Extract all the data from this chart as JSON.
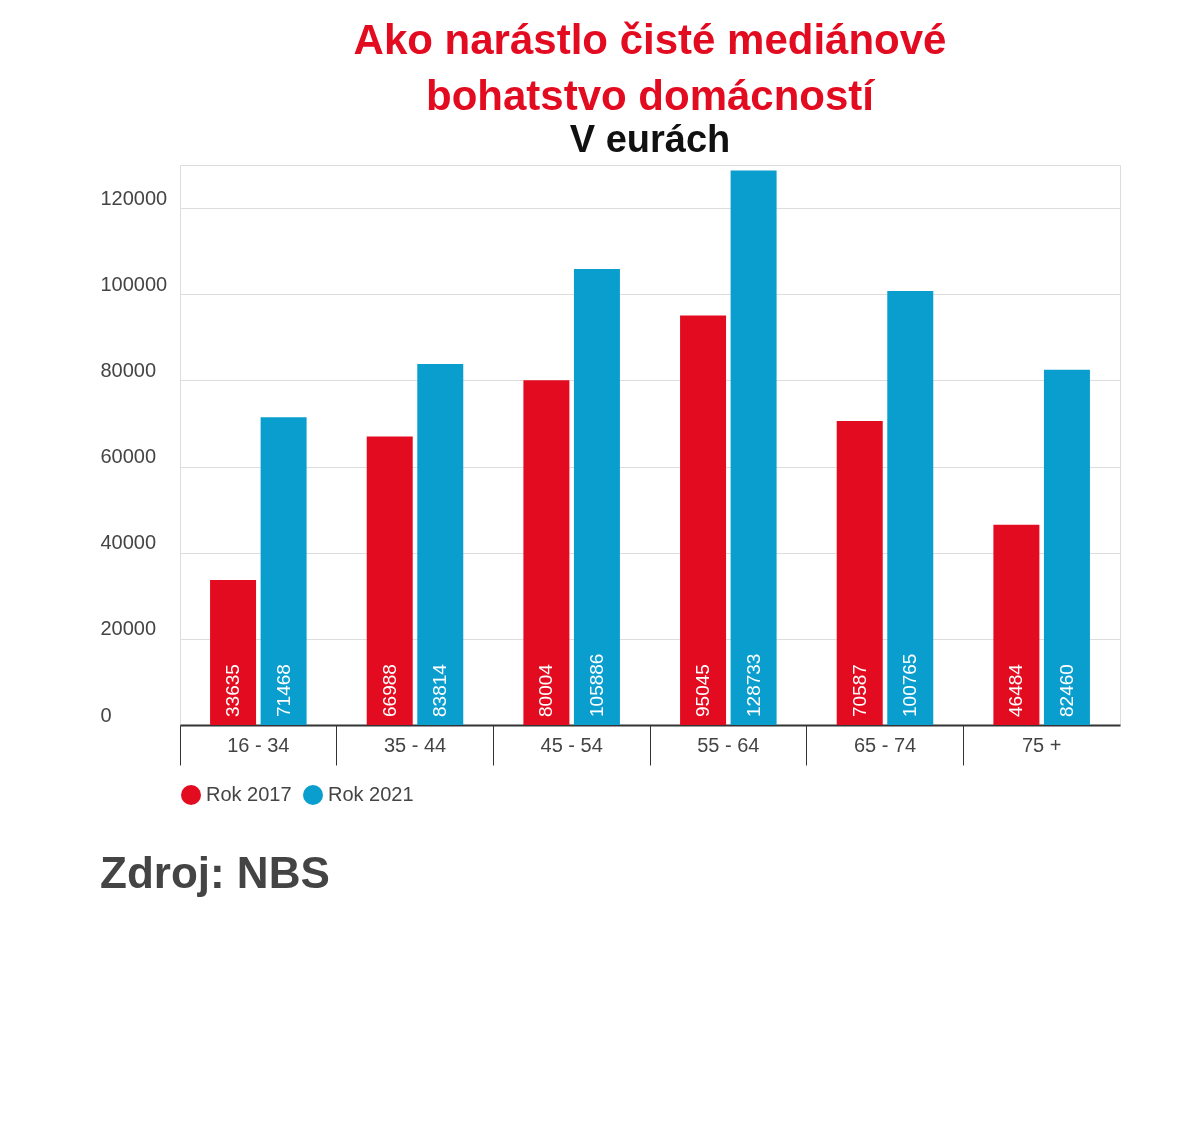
{
  "chart_data": {
    "type": "bar",
    "title": "Ako narástlo čisté mediánové bohatstvo domácností",
    "subtitle": "V eurách",
    "categories": [
      "16 - 34",
      "35 - 44",
      "45 - 54",
      "55 - 64",
      "65 - 74",
      "75 +"
    ],
    "series": [
      {
        "name": "Rok 2017",
        "color": "#e30b20",
        "values": [
          33635,
          66988,
          80004,
          95045,
          70587,
          46484
        ]
      },
      {
        "name": "Rok 2021",
        "color": "#0a9ecf",
        "values": [
          71468,
          83814,
          105886,
          128733,
          100765,
          82460
        ]
      }
    ],
    "ylim": [
      0,
      130000
    ],
    "yticks": [
      0,
      20000,
      40000,
      60000,
      80000,
      100000,
      120000
    ],
    "grid": "y",
    "legend": "bottom",
    "data_labels": true,
    "annotations": [
      "Zdroj: NBS"
    ]
  }
}
